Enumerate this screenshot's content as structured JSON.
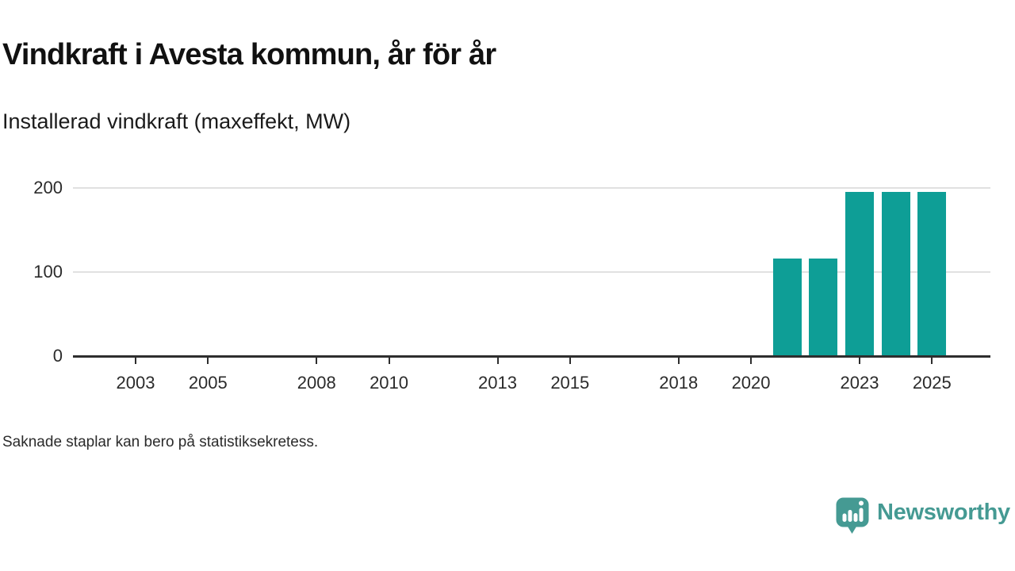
{
  "header": {
    "title": "Vindkraft i Avesta kommun, år för år",
    "subtitle": "Installerad vindkraft (maxeffekt, MW)"
  },
  "footnote": "Saknade staplar kan bero på statistiksekretess.",
  "brand": {
    "name": "Newsworthy",
    "icon": "newsworthy-speech-bubble-barchart-icon",
    "color": "#459a93"
  },
  "colors": {
    "bar": "#0e9e96",
    "axis": "#2e2e2e",
    "gridline": "#e1e1e1",
    "text": "#111111",
    "tick_text": "#2b2b2b"
  },
  "chart_data": {
    "type": "bar",
    "title": "Vindkraft i Avesta kommun, år för år",
    "subtitle": "Installerad vindkraft (maxeffekt, MW)",
    "ylabel": "Installerad vindkraft (maxeffekt, MW)",
    "xlabel": "",
    "x": [
      2021,
      2022,
      2023,
      2024,
      2025
    ],
    "values": [
      116,
      116,
      195,
      195,
      195
    ],
    "series": [
      {
        "name": "Installerad vindkraft (maxeffekt, MW)",
        "points": [
          {
            "year": 2021,
            "value": 116
          },
          {
            "year": 2022,
            "value": 116
          },
          {
            "year": 2023,
            "value": 195
          },
          {
            "year": 2024,
            "value": 195
          },
          {
            "year": 2025,
            "value": 195
          }
        ]
      }
    ],
    "missing_years_note": "Saknade staplar kan bero på statistiksekretess.",
    "xticks": [
      2003,
      2005,
      2008,
      2010,
      2013,
      2015,
      2018,
      2020,
      2023,
      2025
    ],
    "yticks": [
      0,
      100,
      200
    ],
    "xlim": [
      2001.3,
      2026.7
    ],
    "ylim": [
      0,
      200
    ],
    "grid": "horizontal",
    "legend": "none",
    "bar_color": "#0e9e96"
  }
}
